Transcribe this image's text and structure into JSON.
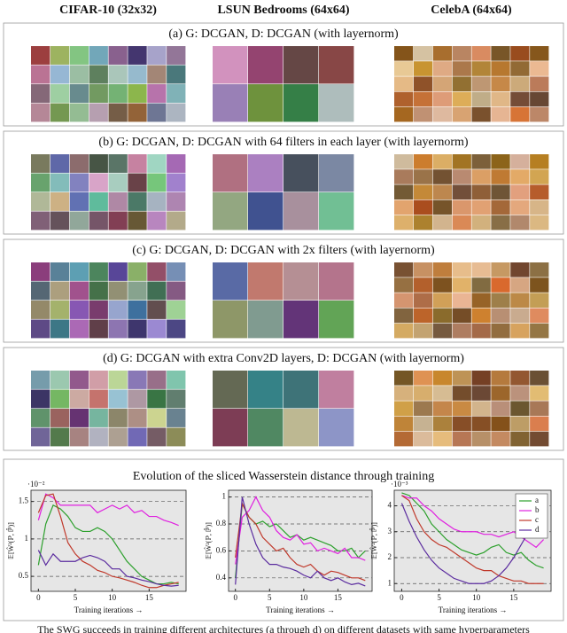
{
  "column_headers": [
    "CIFAR-10 (32x32)",
    "LSUN Bedrooms (64x64)",
    "CelebA (64x64)"
  ],
  "sections": [
    "(a) G: DCGAN, D: DCGAN (with layernorm)",
    "(b) G: DCGAN, D: DCGAN with 64 filters in each layer (with layernorm)",
    "(c) G: DCGAN, D: DCGAN with 2x filters (with layernorm)",
    "(d) G: DCGAN with extra Conv2D layers, D: DCGAN (with layernorm)"
  ],
  "charts_title": "Evolution of the sliced Wasserstein distance through training",
  "caption": "The SWG succeeds in training different architectures (a through d) on different datasets with same hyperparameters",
  "chart_data": [
    {
      "type": "line",
      "y_label": "𝔼[Ŵ²(ℙ, ℙ̂)]",
      "x_label": "Training iterations →",
      "exponent_label": "·10⁻²",
      "x": [
        0,
        1,
        2,
        3,
        4,
        5,
        6,
        7,
        8,
        9,
        10,
        11,
        12,
        13,
        14,
        15,
        16,
        17,
        18,
        19
      ],
      "xlim": [
        -1,
        20
      ],
      "xticks": [
        0,
        5,
        10,
        15
      ],
      "ylim": [
        0.3,
        1.65
      ],
      "yticks": [
        0.5,
        1,
        1.5
      ],
      "grid": true,
      "series": [
        {
          "color": "#2ca02c",
          "values": [
            0.65,
            1.2,
            1.45,
            1.4,
            1.3,
            1.15,
            1.1,
            1.1,
            1.15,
            1.1,
            1.0,
            0.85,
            0.7,
            0.6,
            0.5,
            0.45,
            0.4,
            0.4,
            0.42,
            0.4
          ]
        },
        {
          "color": "#e020e0",
          "values": [
            1.25,
            1.6,
            1.55,
            1.45,
            1.45,
            1.45,
            1.45,
            1.45,
            1.35,
            1.4,
            1.45,
            1.4,
            1.45,
            1.35,
            1.38,
            1.3,
            1.3,
            1.25,
            1.22,
            1.18
          ]
        },
        {
          "color": "#c0392b",
          "values": [
            1.35,
            1.58,
            1.6,
            1.3,
            0.95,
            0.8,
            0.7,
            0.65,
            0.58,
            0.55,
            0.5,
            0.48,
            0.45,
            0.42,
            0.38,
            0.35,
            0.35,
            0.38,
            0.4,
            0.42
          ]
        },
        {
          "color": "#5b2c9f",
          "values": [
            0.85,
            0.65,
            0.8,
            0.7,
            0.7,
            0.7,
            0.75,
            0.78,
            0.75,
            0.7,
            0.6,
            0.6,
            0.5,
            0.48,
            0.45,
            0.43,
            0.4,
            0.38,
            0.37,
            0.38
          ]
        }
      ]
    },
    {
      "type": "line",
      "y_label": "𝔼[Ŵ²(ℙ, ℙ̂)]",
      "x_label": "Training iterations →",
      "x": [
        0,
        1,
        2,
        3,
        4,
        5,
        6,
        7,
        8,
        9,
        10,
        11,
        12,
        13,
        14,
        15,
        16,
        17,
        18,
        19
      ],
      "xlim": [
        -1,
        20
      ],
      "xticks": [
        0,
        5,
        10,
        15
      ],
      "ylim": [
        0.3,
        1.05
      ],
      "yticks": [
        0.4,
        0.6,
        0.8,
        1
      ],
      "grid": true,
      "series": [
        {
          "color": "#2ca02c",
          "values": [
            0.4,
            0.95,
            0.85,
            0.8,
            0.82,
            0.78,
            0.8,
            0.75,
            0.7,
            0.72,
            0.68,
            0.7,
            0.68,
            0.66,
            0.64,
            0.6,
            0.6,
            0.62,
            0.55,
            0.6
          ]
        },
        {
          "color": "#e020e0",
          "values": [
            0.5,
            0.85,
            0.9,
            1.0,
            0.9,
            0.85,
            0.75,
            0.7,
            0.68,
            0.72,
            0.65,
            0.66,
            0.6,
            0.62,
            0.6,
            0.58,
            0.62,
            0.55,
            0.55,
            0.53
          ]
        },
        {
          "color": "#c0392b",
          "values": [
            0.55,
            0.95,
            0.85,
            0.8,
            0.7,
            0.65,
            0.6,
            0.62,
            0.55,
            0.5,
            0.48,
            0.5,
            0.45,
            0.42,
            0.45,
            0.44,
            0.42,
            0.4,
            0.4,
            0.38
          ]
        },
        {
          "color": "#5b2c9f",
          "values": [
            0.35,
            1.0,
            0.8,
            0.65,
            0.55,
            0.5,
            0.5,
            0.48,
            0.47,
            0.45,
            0.42,
            0.4,
            0.45,
            0.4,
            0.38,
            0.4,
            0.37,
            0.35,
            0.36,
            0.34
          ]
        }
      ]
    },
    {
      "type": "line",
      "y_label": "𝔼[Ŵ²(ℙ, ℙ̂)]",
      "x_label": "Training iterations →",
      "exponent_label": "·10⁻³",
      "x": [
        0,
        1,
        2,
        3,
        4,
        5,
        6,
        7,
        8,
        9,
        10,
        11,
        12,
        13,
        14,
        15,
        16,
        17,
        18,
        19
      ],
      "xlim": [
        -1,
        20
      ],
      "xticks": [
        0,
        5,
        10,
        15
      ],
      "ylim": [
        0.7,
        4.6
      ],
      "yticks": [
        1,
        2,
        3,
        4
      ],
      "grid": true,
      "legend": "upper right",
      "series": [
        {
          "name": "a",
          "color": "#2ca02c",
          "values": [
            4.5,
            4.4,
            4.1,
            3.8,
            3.3,
            3.0,
            2.7,
            2.5,
            2.3,
            2.2,
            2.1,
            2.2,
            2.4,
            2.5,
            2.2,
            2.1,
            2.2,
            1.9,
            1.7,
            1.6
          ]
        },
        {
          "name": "b",
          "color": "#e020e0",
          "values": [
            4.4,
            4.3,
            4.3,
            4.0,
            3.8,
            3.5,
            3.3,
            3.1,
            3.0,
            3.0,
            3.0,
            2.9,
            2.9,
            2.8,
            2.9,
            3.0,
            2.8,
            2.6,
            2.4,
            2.7
          ]
        },
        {
          "name": "c",
          "color": "#c0392b",
          "values": [
            4.4,
            4.2,
            3.5,
            3.0,
            2.7,
            2.5,
            2.4,
            2.2,
            2.0,
            1.8,
            1.6,
            1.5,
            1.5,
            1.3,
            1.2,
            1.1,
            1.1,
            1.0,
            1.0,
            1.0
          ]
        },
        {
          "name": "d",
          "color": "#5b2c9f",
          "values": [
            4.1,
            3.4,
            2.8,
            2.3,
            1.9,
            1.6,
            1.4,
            1.2,
            1.1,
            1.0,
            1.0,
            1.0,
            1.1,
            1.3,
            1.6,
            2.0,
            2.5,
            3.0,
            3.3,
            3.4
          ]
        }
      ]
    }
  ]
}
